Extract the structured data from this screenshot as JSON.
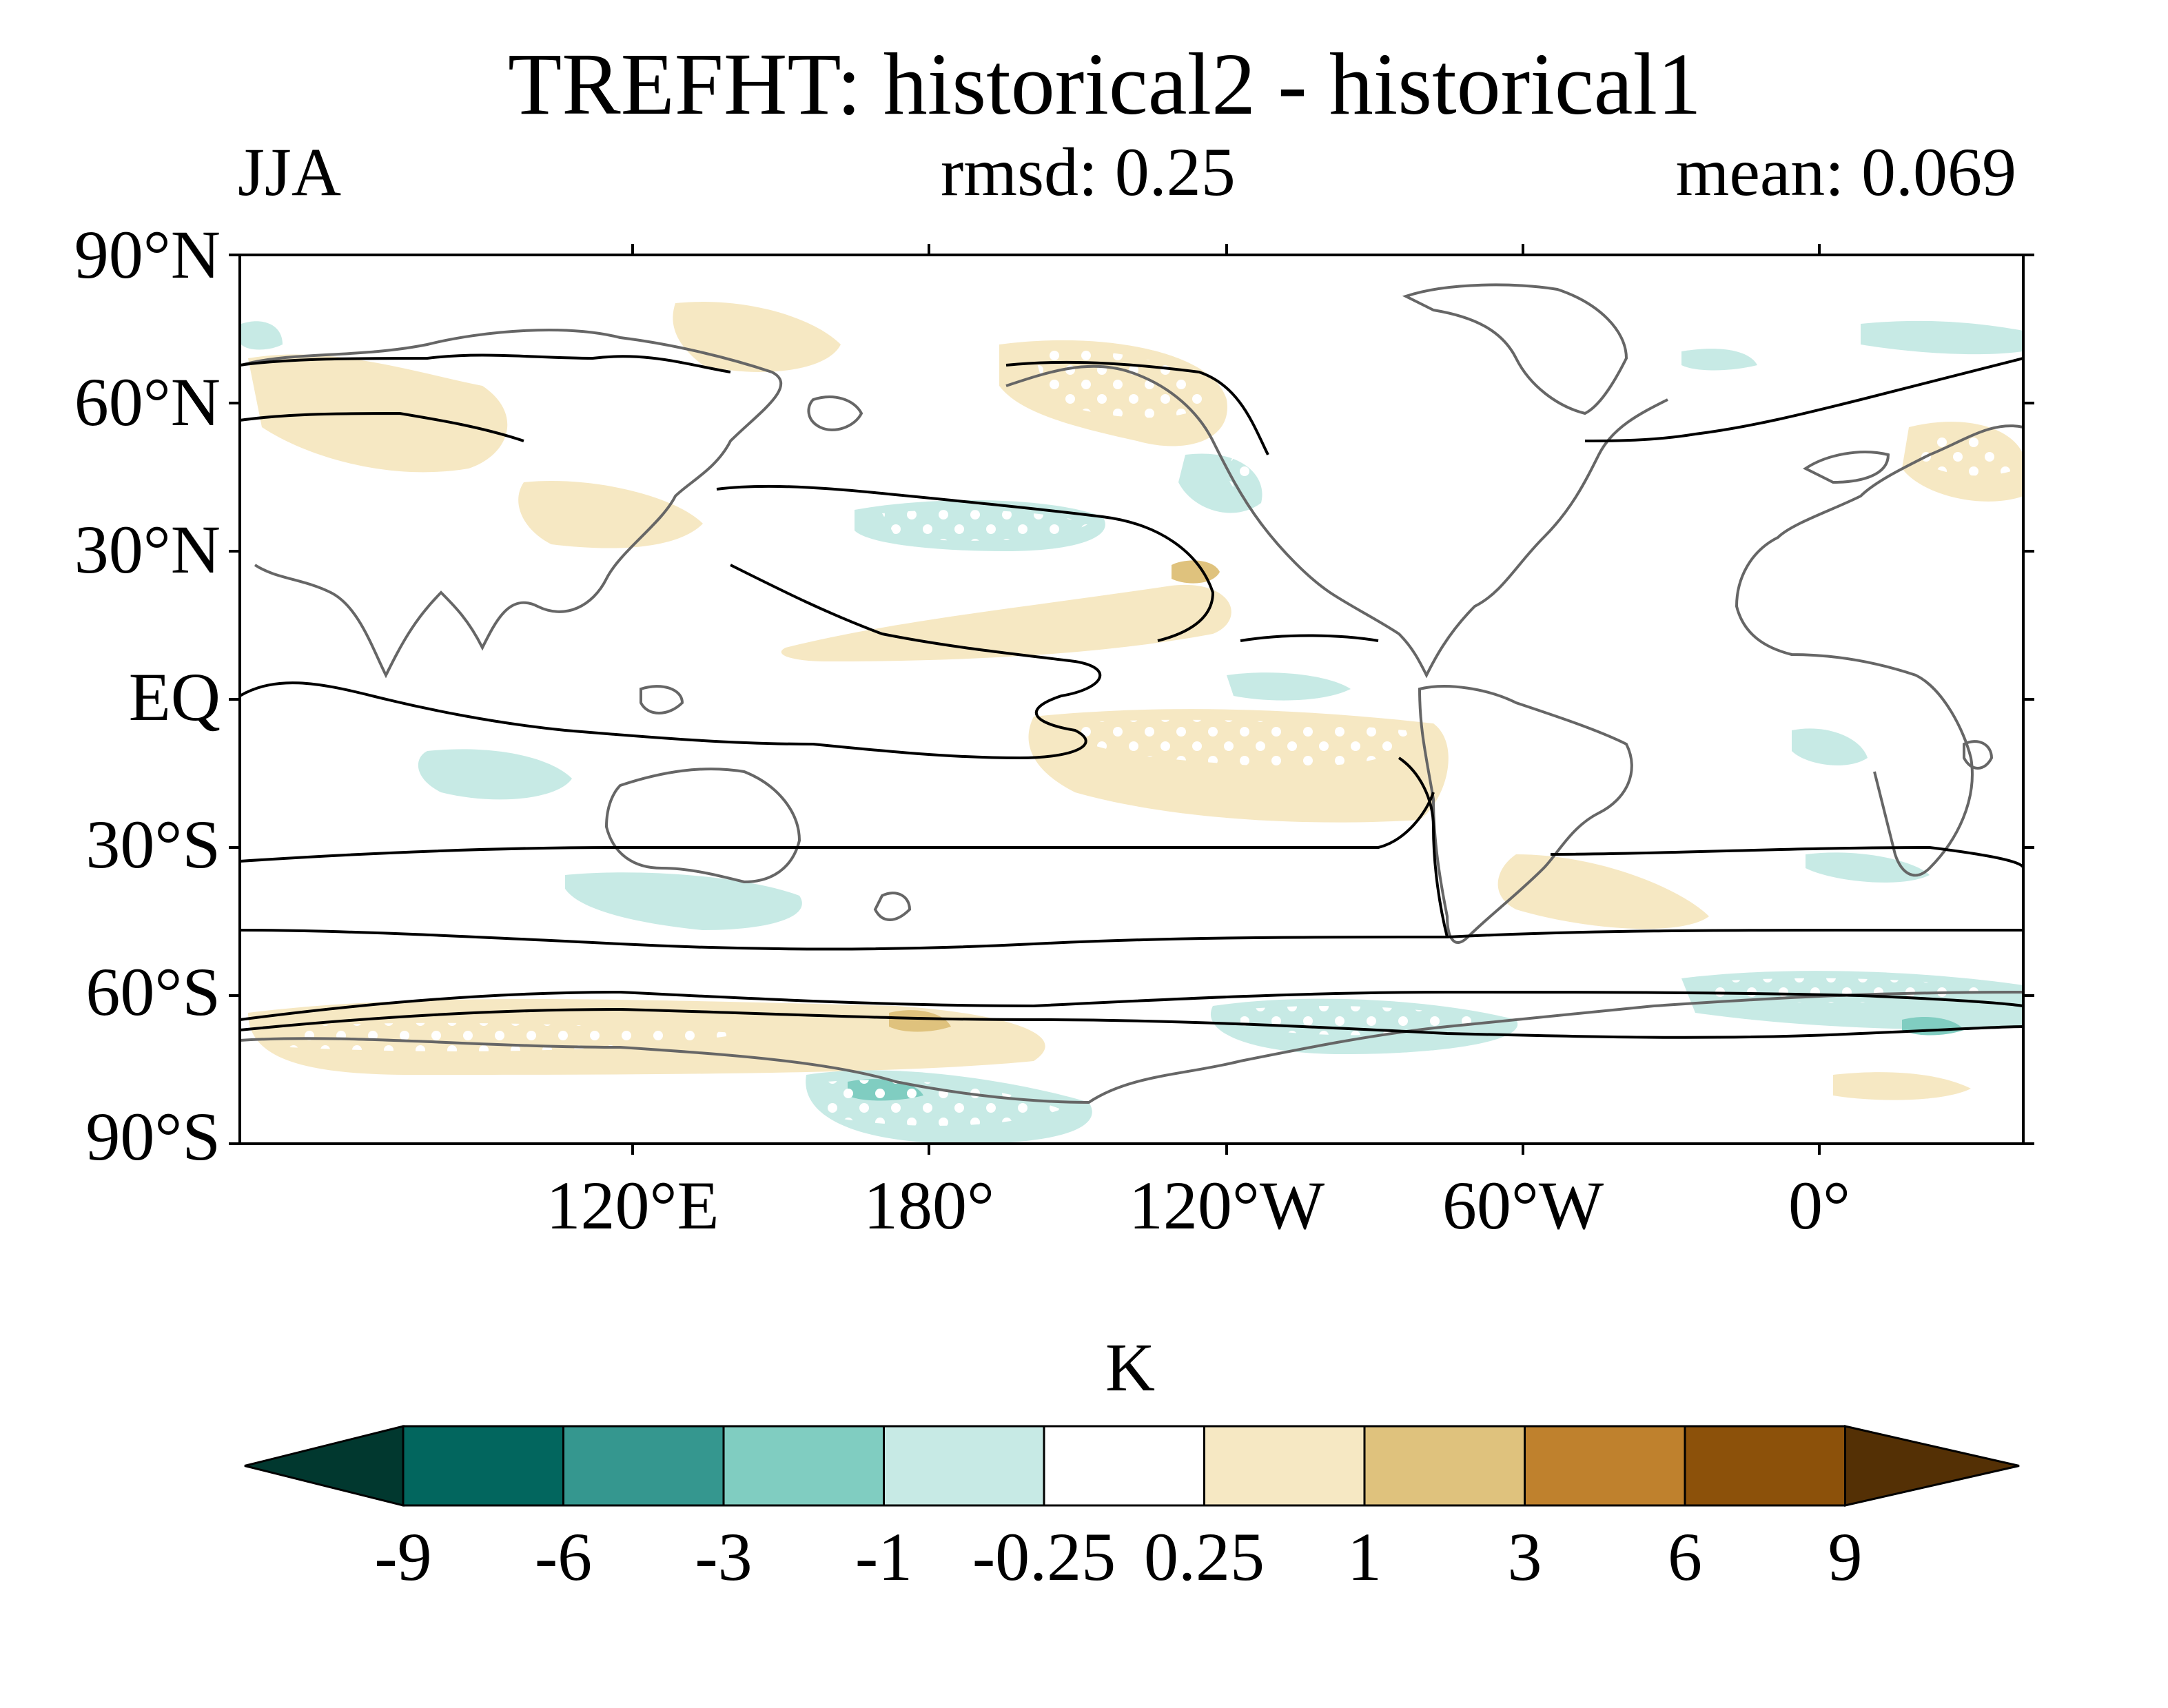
{
  "title": "TREFHT: historical2 - historical1",
  "season": "JJA",
  "rmsd": "rmsd: 0.25",
  "mean": "mean: 0.069",
  "lat_labels": [
    "90°N",
    "60°N",
    "30°N",
    "EQ",
    "30°S",
    "60°S",
    "90°S"
  ],
  "lon_labels": [
    "120°E",
    "180°",
    "120°W",
    "60°W",
    "0°"
  ],
  "colorbar": {
    "unit": "K",
    "ticks": [
      "-9",
      "-6",
      "-3",
      "-1",
      "-0.25",
      "0.25",
      "1",
      "3",
      "6",
      "9"
    ],
    "colors": [
      "#01382f",
      "#02665e",
      "#35978f",
      "#80cdc1",
      "#c7eae5",
      "#ffffff",
      "#f6e8c3",
      "#dfc27d",
      "#bf812d",
      "#8c510a",
      "#543005"
    ]
  },
  "map": {
    "lon_range": [
      40,
      400
    ],
    "lat_range": [
      -90,
      90
    ],
    "stippling": "white dots mark significant regions"
  }
}
